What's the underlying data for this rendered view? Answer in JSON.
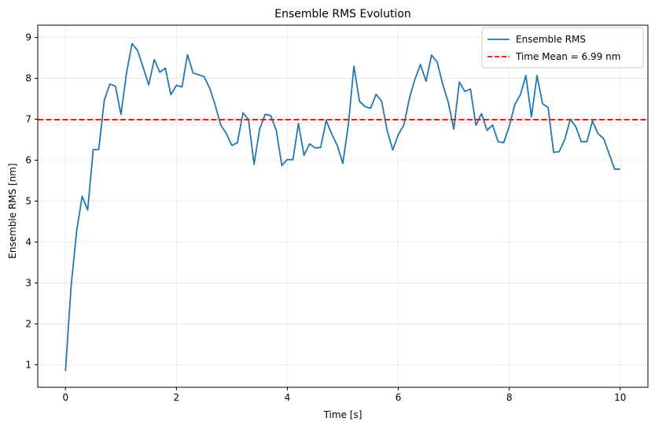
{
  "chart_data": {
    "type": "line",
    "title": "Ensemble RMS Evolution",
    "xlabel": "Time [s]",
    "ylabel": "Ensemble RMS [nm]",
    "xlim": [
      -0.5,
      10.5
    ],
    "ylim": [
      0.45,
      9.3
    ],
    "xticks": [
      0,
      2,
      4,
      6,
      8,
      10
    ],
    "yticks": [
      1,
      2,
      3,
      4,
      5,
      6,
      7,
      8,
      9
    ],
    "grid": true,
    "legend_position": "top-right",
    "series": [
      {
        "name": "Ensemble RMS",
        "color": "#1f77b4",
        "x": [
          0.0,
          0.1,
          0.2,
          0.3,
          0.4,
          0.5,
          0.6,
          0.7,
          0.8,
          0.9,
          1.0,
          1.1,
          1.2,
          1.3,
          1.4,
          1.5,
          1.6,
          1.7,
          1.8,
          1.9,
          2.0,
          2.1,
          2.2,
          2.3,
          2.4,
          2.5,
          2.6,
          2.7,
          2.8,
          2.9,
          3.0,
          3.1,
          3.2,
          3.3,
          3.4,
          3.5,
          3.6,
          3.7,
          3.8,
          3.9,
          4.0,
          4.1,
          4.2,
          4.3,
          4.4,
          4.5,
          4.6,
          4.7,
          4.8,
          4.9,
          5.0,
          5.1,
          5.2,
          5.3,
          5.4,
          5.5,
          5.6,
          5.7,
          5.8,
          5.9,
          6.0,
          6.1,
          6.2,
          6.3,
          6.4,
          6.5,
          6.6,
          6.7,
          6.8,
          6.9,
          7.0,
          7.1,
          7.2,
          7.3,
          7.4,
          7.5,
          7.6,
          7.7,
          7.8,
          7.9,
          8.0,
          8.1,
          8.2,
          8.3,
          8.4,
          8.5,
          8.6,
          8.7,
          8.8,
          8.9,
          9.0,
          9.1,
          9.2,
          9.3,
          9.4,
          9.5,
          9.6,
          9.7,
          9.8,
          9.9,
          10.0
        ],
        "values": [
          0.85,
          2.9,
          4.25,
          5.12,
          4.78,
          6.26,
          6.26,
          7.47,
          7.86,
          7.81,
          7.12,
          8.13,
          8.85,
          8.68,
          8.27,
          7.84,
          8.46,
          8.15,
          8.25,
          7.6,
          7.83,
          7.79,
          8.58,
          8.13,
          8.09,
          8.04,
          7.76,
          7.34,
          6.86,
          6.65,
          6.36,
          6.43,
          7.16,
          6.99,
          5.9,
          6.76,
          7.12,
          7.09,
          6.73,
          5.87,
          6.02,
          6.01,
          6.9,
          6.12,
          6.4,
          6.3,
          6.31,
          6.97,
          6.64,
          6.36,
          5.92,
          6.87,
          8.3,
          7.44,
          7.31,
          7.27,
          7.61,
          7.44,
          6.72,
          6.25,
          6.63,
          6.86,
          7.51,
          7.98,
          8.34,
          7.93,
          8.57,
          8.4,
          7.86,
          7.42,
          6.76,
          7.91,
          7.68,
          7.74,
          6.85,
          7.14,
          6.73,
          6.86,
          6.45,
          6.43,
          6.83,
          7.36,
          7.6,
          8.07,
          7.06,
          8.07,
          7.38,
          7.29,
          6.19,
          6.21,
          6.5,
          7.0,
          6.82,
          6.45,
          6.45,
          6.96,
          6.65,
          6.53,
          6.16,
          5.78,
          5.78
        ]
      },
      {
        "name": "Time Mean = 6.99 nm",
        "color": "#ff0000",
        "style": "dashed",
        "value": 6.99
      }
    ]
  }
}
